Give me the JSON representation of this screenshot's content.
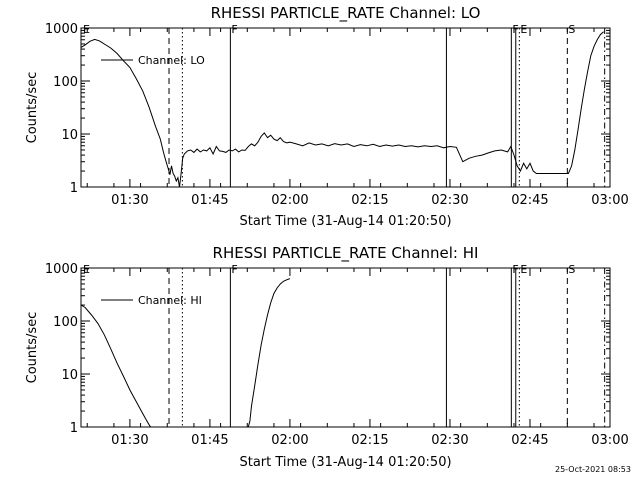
{
  "footer": {
    "timestamp": "25-Oct-2021 08:53"
  },
  "chart_data": [
    {
      "type": "line",
      "title": "RHESSI PARTICLE_RATE Channel: LO",
      "xlabel": "Start Time (31-Aug-14 01:20:50)",
      "ylabel": "Counts/sec",
      "yscale": "log",
      "xlim": [
        1.3472,
        3.0
      ],
      "ylim": [
        1,
        1000
      ],
      "x_ticks": [
        {
          "value": 1.5,
          "label": "01:30"
        },
        {
          "value": 1.75,
          "label": "01:45"
        },
        {
          "value": 2.0,
          "label": "02:00"
        },
        {
          "value": 2.25,
          "label": "02:15"
        },
        {
          "value": 2.5,
          "label": "02:30"
        },
        {
          "value": 2.75,
          "label": "02:45"
        },
        {
          "value": 3.0,
          "label": "03:00"
        }
      ],
      "y_ticks": [
        {
          "value": 1,
          "label": "1"
        },
        {
          "value": 10,
          "label": "10"
        },
        {
          "value": 100,
          "label": "100"
        },
        {
          "value": 1000,
          "label": "1000"
        }
      ],
      "legend": {
        "label": "Channel: LO",
        "position": "top-left"
      },
      "vlines": [
        {
          "x": 1.6222,
          "style": "dashed",
          "label": ""
        },
        {
          "x": 1.6639,
          "style": "dotted",
          "label": ""
        },
        {
          "x": 1.8139,
          "style": "solid",
          "label": "F"
        },
        {
          "x": 2.4889,
          "style": "solid",
          "label": ""
        },
        {
          "x": 2.6917,
          "style": "solid",
          "label": "F"
        },
        {
          "x": 2.7056,
          "style": "solid",
          "label": ""
        },
        {
          "x": 2.7167,
          "style": "dotted",
          "label": "E"
        },
        {
          "x": 2.8667,
          "style": "dashed",
          "label": "S"
        },
        {
          "x": 2.9833,
          "style": "dashdot",
          "label": ""
        }
      ],
      "corner_label": "E",
      "series": [
        {
          "x": [
            1.347,
            1.36,
            1.375,
            1.39,
            1.405,
            1.42,
            1.44,
            1.46,
            1.48,
            1.5,
            1.52,
            1.54,
            1.56,
            1.58,
            1.595,
            1.605,
            1.613,
            1.62,
            1.625,
            1.63,
            1.635,
            1.64,
            1.645,
            1.65,
            1.655,
            1.66,
            1.665,
            1.67,
            1.68,
            1.69,
            1.7,
            1.71,
            1.72,
            1.73,
            1.74,
            1.75,
            1.76,
            1.77,
            1.78,
            1.79,
            1.8,
            1.81,
            1.82,
            1.83,
            1.84,
            1.85,
            1.86,
            1.87,
            1.88,
            1.89,
            1.9,
            1.91,
            1.92,
            1.93,
            1.94,
            1.95,
            1.96,
            1.97,
            1.98,
            1.99,
            2.0,
            2.02,
            2.04,
            2.06,
            2.08,
            2.1,
            2.12,
            2.14,
            2.16,
            2.18,
            2.2,
            2.22,
            2.24,
            2.26,
            2.28,
            2.3,
            2.32,
            2.34,
            2.36,
            2.38,
            2.4,
            2.42,
            2.44,
            2.46,
            2.48,
            2.5,
            2.52,
            2.54,
            2.56,
            2.58,
            2.6,
            2.62,
            2.64,
            2.66,
            2.68,
            2.69,
            2.7,
            2.71,
            2.72,
            2.73,
            2.74,
            2.75,
            2.76,
            2.77,
            2.78,
            2.79,
            2.8,
            2.82,
            2.84,
            2.86,
            2.87,
            2.88,
            2.89,
            2.9,
            2.91,
            2.92,
            2.93,
            2.94,
            2.95,
            2.96,
            2.97,
            2.98
          ],
          "y": [
            430,
            480,
            560,
            610,
            570,
            500,
            420,
            330,
            240,
            180,
            110,
            65,
            32,
            14,
            8,
            4.5,
            3,
            2.2,
            1.7,
            2.5,
            1.8,
            1.6,
            1.3,
            1.5,
            1.0,
            1.8,
            3.5,
            4.2,
            4.8,
            5.0,
            4.5,
            5.2,
            4.6,
            5.0,
            4.8,
            5.5,
            4.2,
            5.8,
            4.8,
            4.7,
            4.5,
            5.0,
            4.8,
            5.2,
            4.6,
            5.0,
            4.9,
            5.8,
            6.5,
            6.0,
            7.0,
            9.0,
            10.5,
            8.5,
            9.5,
            8.0,
            7.5,
            8.5,
            7.2,
            6.8,
            7.0,
            6.5,
            6.0,
            6.8,
            6.2,
            6.5,
            6.0,
            6.6,
            6.2,
            6.5,
            5.8,
            6.3,
            6.0,
            6.4,
            5.8,
            6.2,
            5.9,
            6.2,
            5.8,
            6.0,
            5.7,
            6.0,
            5.8,
            6.0,
            5.5,
            5.8,
            5.6,
            3.0,
            3.5,
            3.8,
            4.0,
            4.4,
            4.8,
            5.0,
            4.6,
            5.8,
            4.0,
            2.5,
            2.0,
            2.8,
            2.2,
            2.8,
            2.0,
            1.8,
            1.8,
            1.8,
            1.8,
            1.8,
            1.8,
            1.8,
            1.8,
            2.5,
            5.0,
            12,
            30,
            70,
            150,
            300,
            450,
            600,
            750,
            850
          ]
        }
      ]
    },
    {
      "type": "line",
      "title": "RHESSI PARTICLE_RATE Channel: HI",
      "xlabel": "Start Time (31-Aug-14 01:20:50)",
      "ylabel": "Counts/sec",
      "yscale": "log",
      "xlim": [
        1.3472,
        3.0
      ],
      "ylim": [
        1,
        1000
      ],
      "x_ticks": [
        {
          "value": 1.5,
          "label": "01:30"
        },
        {
          "value": 1.75,
          "label": "01:45"
        },
        {
          "value": 2.0,
          "label": "02:00"
        },
        {
          "value": 2.25,
          "label": "02:15"
        },
        {
          "value": 2.5,
          "label": "02:30"
        },
        {
          "value": 2.75,
          "label": "02:45"
        },
        {
          "value": 3.0,
          "label": "03:00"
        }
      ],
      "y_ticks": [
        {
          "value": 1,
          "label": "1"
        },
        {
          "value": 10,
          "label": "10"
        },
        {
          "value": 100,
          "label": "100"
        },
        {
          "value": 1000,
          "label": "1000"
        }
      ],
      "legend": {
        "label": "Channel: HI",
        "position": "top-left"
      },
      "vlines": [
        {
          "x": 1.6222,
          "style": "dashed",
          "label": ""
        },
        {
          "x": 1.6639,
          "style": "dotted",
          "label": ""
        },
        {
          "x": 1.8139,
          "style": "solid",
          "label": "F"
        },
        {
          "x": 2.4889,
          "style": "solid",
          "label": ""
        },
        {
          "x": 2.6917,
          "style": "solid",
          "label": "F"
        },
        {
          "x": 2.7056,
          "style": "solid",
          "label": ""
        },
        {
          "x": 2.7167,
          "style": "dotted",
          "label": "E"
        },
        {
          "x": 2.8667,
          "style": "dashed",
          "label": "S"
        },
        {
          "x": 2.9833,
          "style": "dashdot",
          "label": ""
        }
      ],
      "corner_label": "E",
      "series": [
        {
          "x": [
            1.347,
            1.36,
            1.38,
            1.4,
            1.42,
            1.44,
            1.46,
            1.48,
            1.5,
            1.52,
            1.54,
            1.55,
            1.56,
            1.565,
            1.87,
            1.875,
            1.88,
            1.89,
            1.9,
            1.91,
            1.92,
            1.93,
            1.94,
            1.95,
            1.96,
            1.97,
            1.98,
            1.99,
            2.0
          ],
          "y": [
            200,
            180,
            130,
            90,
            55,
            30,
            16,
            9,
            5,
            3,
            1.8,
            1.4,
            1.1,
            1.0,
            1.0,
            1.3,
            2.5,
            6,
            15,
            35,
            70,
            130,
            220,
            330,
            420,
            500,
            560,
            600,
            630
          ]
        }
      ]
    }
  ]
}
